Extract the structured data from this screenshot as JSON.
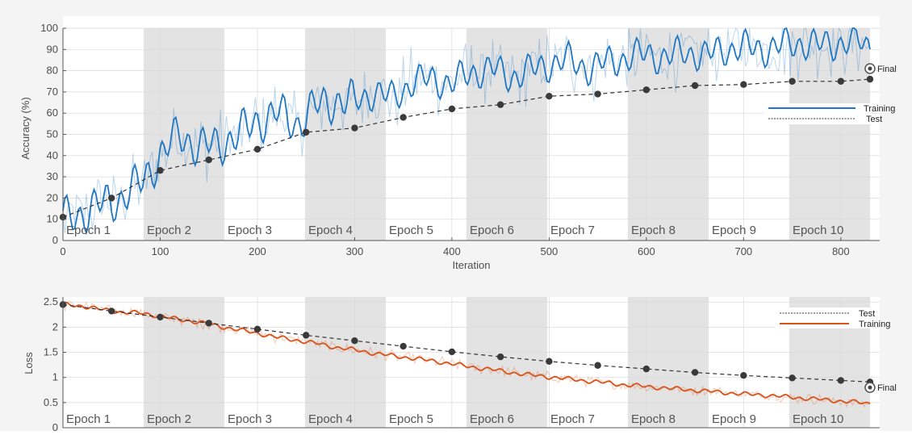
{
  "accuracy_panel": {
    "ylabel": "Accuracy (%)",
    "xlabel": "Iteration",
    "final_label": "Final",
    "legend": {
      "training": "Training",
      "test": "Test"
    }
  },
  "loss_panel": {
    "ylabel": "Loss",
    "final_label": "Final",
    "legend": {
      "test": "Test",
      "training": "Training"
    }
  },
  "epochs": [
    "Epoch 1",
    "Epoch 2",
    "Epoch 3",
    "Epoch 4",
    "Epoch 5",
    "Epoch 6",
    "Epoch 7",
    "Epoch 8",
    "Epoch 9",
    "Epoch 10"
  ],
  "colors": {
    "training_accuracy": "#1f77c4",
    "training_loss": "#d95319",
    "test": "#333333",
    "epoch_shade": "#e3e3e3"
  },
  "chart_data": [
    {
      "type": "line",
      "panel": "accuracy",
      "xlabel": "Iteration",
      "ylabel": "Accuracy (%)",
      "xlim": [
        0,
        840
      ],
      "ylim": [
        0,
        100
      ],
      "x_ticks": [
        0,
        100,
        200,
        300,
        400,
        500,
        600,
        700,
        800
      ],
      "y_ticks": [
        0,
        10,
        20,
        30,
        40,
        50,
        60,
        70,
        80,
        90,
        100
      ],
      "grid": true,
      "legend_position": "right",
      "epoch_bands": [
        {
          "label": "Epoch 1",
          "range": [
            0,
            83
          ]
        },
        {
          "label": "Epoch 2",
          "range": [
            83,
            166
          ]
        },
        {
          "label": "Epoch 3",
          "range": [
            166,
            249
          ]
        },
        {
          "label": "Epoch 4",
          "range": [
            249,
            332
          ]
        },
        {
          "label": "Epoch 5",
          "range": [
            332,
            415
          ]
        },
        {
          "label": "Epoch 6",
          "range": [
            415,
            498
          ]
        },
        {
          "label": "Epoch 7",
          "range": [
            498,
            581
          ]
        },
        {
          "label": "Epoch 8",
          "range": [
            581,
            664
          ]
        },
        {
          "label": "Epoch 9",
          "range": [
            664,
            747
          ]
        },
        {
          "label": "Epoch 10",
          "range": [
            747,
            830
          ]
        }
      ],
      "series": [
        {
          "name": "Training",
          "style": "solid",
          "x": [
            0,
            20,
            40,
            60,
            80,
            100,
            120,
            140,
            160,
            180,
            200,
            220,
            240,
            260,
            280,
            300,
            320,
            340,
            360,
            380,
            400,
            420,
            440,
            460,
            480,
            500,
            520,
            540,
            560,
            580,
            600,
            620,
            640,
            660,
            680,
            700,
            720,
            740,
            760,
            780,
            800,
            820,
            830
          ],
          "y": [
            10,
            13,
            17,
            20,
            27,
            40,
            50,
            44,
            45,
            50,
            56,
            60,
            55,
            63,
            66,
            65,
            70,
            67,
            75,
            76,
            74,
            79,
            81,
            77,
            80,
            83,
            85,
            81,
            84,
            86,
            88,
            86,
            89,
            87,
            90,
            91,
            90,
            92,
            93,
            92,
            93,
            94,
            91
          ]
        },
        {
          "name": "Test",
          "style": "dashed",
          "x": [
            0,
            50,
            100,
            150,
            200,
            250,
            300,
            350,
            400,
            450,
            500,
            550,
            600,
            650,
            700,
            750,
            800,
            830
          ],
          "y": [
            11,
            20,
            33,
            38,
            43,
            51,
            53,
            58,
            62,
            64,
            68,
            69,
            71,
            73,
            73.5,
            75,
            75,
            76
          ]
        }
      ],
      "final_value": 81
    },
    {
      "type": "line",
      "panel": "loss",
      "ylabel": "Loss",
      "xlim": [
        0,
        840
      ],
      "ylim": [
        0,
        2.6
      ],
      "y_ticks": [
        0,
        0.5,
        1,
        1.5,
        2,
        2.5
      ],
      "y_tick_labels": [
        "0",
        "0.5",
        "1",
        "1.5",
        "2",
        "2.5"
      ],
      "grid": true,
      "legend_position": "right",
      "series": [
        {
          "name": "Test",
          "style": "dashed",
          "x": [
            0,
            50,
            100,
            150,
            200,
            250,
            300,
            350,
            400,
            450,
            500,
            550,
            600,
            650,
            700,
            750,
            800,
            830
          ],
          "y": [
            2.45,
            2.32,
            2.2,
            2.08,
            1.96,
            1.84,
            1.73,
            1.62,
            1.51,
            1.41,
            1.32,
            1.24,
            1.17,
            1.1,
            1.04,
            0.99,
            0.94,
            0.91
          ]
        },
        {
          "name": "Training",
          "style": "solid",
          "x": [
            0,
            20,
            40,
            60,
            80,
            100,
            120,
            140,
            160,
            180,
            200,
            220,
            240,
            260,
            280,
            300,
            320,
            340,
            360,
            380,
            400,
            420,
            440,
            460,
            480,
            500,
            520,
            540,
            560,
            580,
            600,
            620,
            640,
            660,
            680,
            700,
            720,
            740,
            760,
            780,
            800,
            820,
            830
          ],
          "y": [
            2.45,
            2.42,
            2.35,
            2.3,
            2.28,
            2.22,
            2.15,
            2.1,
            2.02,
            1.95,
            1.88,
            1.8,
            1.74,
            1.68,
            1.6,
            1.55,
            1.48,
            1.43,
            1.38,
            1.33,
            1.27,
            1.21,
            1.16,
            1.1,
            1.05,
            1.01,
            0.97,
            0.93,
            0.89,
            0.85,
            0.82,
            0.79,
            0.76,
            0.73,
            0.7,
            0.67,
            0.65,
            0.62,
            0.59,
            0.56,
            0.53,
            0.5,
            0.48
          ]
        }
      ],
      "final_value": 0.8
    }
  ]
}
